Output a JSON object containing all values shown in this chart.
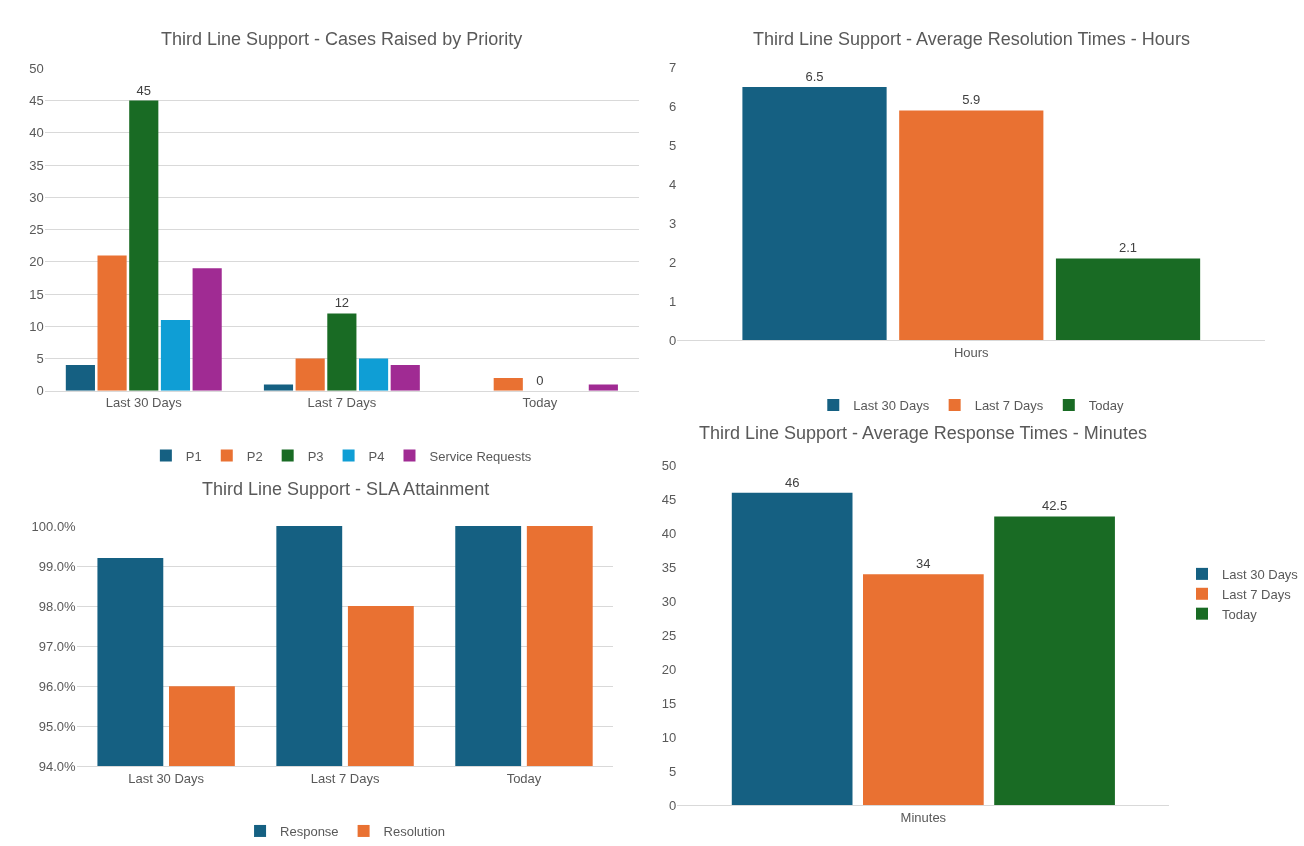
{
  "chart_data": [
    {
      "type": "bar",
      "title": "Third Line Support - Cases Raised by Priority",
      "categories": [
        "Last 30 Days",
        "Last 7 Days",
        "Today"
      ],
      "series": [
        {
          "name": "P1",
          "color": "#156082",
          "values": [
            4,
            1,
            0
          ]
        },
        {
          "name": "P2",
          "color": "#e97132",
          "values": [
            21,
            5,
            2
          ]
        },
        {
          "name": "P3",
          "color": "#196b24",
          "values": [
            45,
            12,
            0
          ],
          "value_labels": [
            "45",
            "12",
            "0"
          ]
        },
        {
          "name": "P4",
          "color": "#0f9ed5",
          "values": [
            11,
            5,
            0
          ]
        },
        {
          "name": "Service Requests",
          "color": "#a02b93",
          "values": [
            19,
            4,
            1
          ]
        }
      ],
      "ylim": [
        0,
        50
      ],
      "yticks": [
        0,
        5,
        10,
        15,
        20,
        25,
        30,
        35,
        40,
        45,
        50
      ],
      "grid": "y",
      "legend": "bottom"
    },
    {
      "type": "bar",
      "title": "Third Line Support - Average Resolution Times - Hours",
      "categories": [
        "Hours"
      ],
      "series": [
        {
          "name": "Last 30 Days",
          "color": "#156082",
          "values": [
            6.5
          ]
        },
        {
          "name": "Last 7 Days",
          "color": "#e97132",
          "values": [
            5.9
          ]
        },
        {
          "name": "Today",
          "color": "#196b24",
          "values": [
            2.1
          ]
        }
      ],
      "ylim": [
        0,
        7
      ],
      "yticks": [
        0,
        1,
        2,
        3,
        4,
        5,
        6,
        7
      ],
      "data_labels": true,
      "legend": "bottom"
    },
    {
      "type": "bar",
      "title": "Third Line Support - SLA Attainment",
      "categories": [
        "Last 30 Days",
        "Last 7 Days",
        "Today"
      ],
      "series": [
        {
          "name": "Response",
          "color": "#156082",
          "values": [
            99.2,
            100,
            100
          ]
        },
        {
          "name": "Resolution",
          "color": "#e97132",
          "values": [
            96.0,
            98.0,
            100
          ]
        }
      ],
      "ylim": [
        94,
        100
      ],
      "yticks": [
        {
          "value": 94,
          "label": "94.0%"
        },
        {
          "value": 95,
          "label": "95.0%"
        },
        {
          "value": 96,
          "label": "96.0%"
        },
        {
          "value": 97,
          "label": "97.0%"
        },
        {
          "value": 98,
          "label": "98.0%"
        },
        {
          "value": 99,
          "label": "99.0%"
        },
        {
          "value": 100,
          "label": "100.0%"
        }
      ],
      "grid": "y",
      "legend": "bottom"
    },
    {
      "type": "bar",
      "title": "Third Line Support - Average Response Times - Minutes",
      "categories": [
        "Minutes"
      ],
      "series": [
        {
          "name": "Last 30 Days",
          "color": "#156082",
          "values": [
            46
          ]
        },
        {
          "name": "Last 7 Days",
          "color": "#e97132",
          "values": [
            34
          ]
        },
        {
          "name": "Today",
          "color": "#196b24",
          "values": [
            42.5
          ]
        }
      ],
      "ylim": [
        0,
        50
      ],
      "yticks": [
        0,
        5,
        10,
        15,
        20,
        25,
        30,
        35,
        40,
        45,
        50
      ],
      "data_labels": true,
      "legend": "right"
    }
  ]
}
